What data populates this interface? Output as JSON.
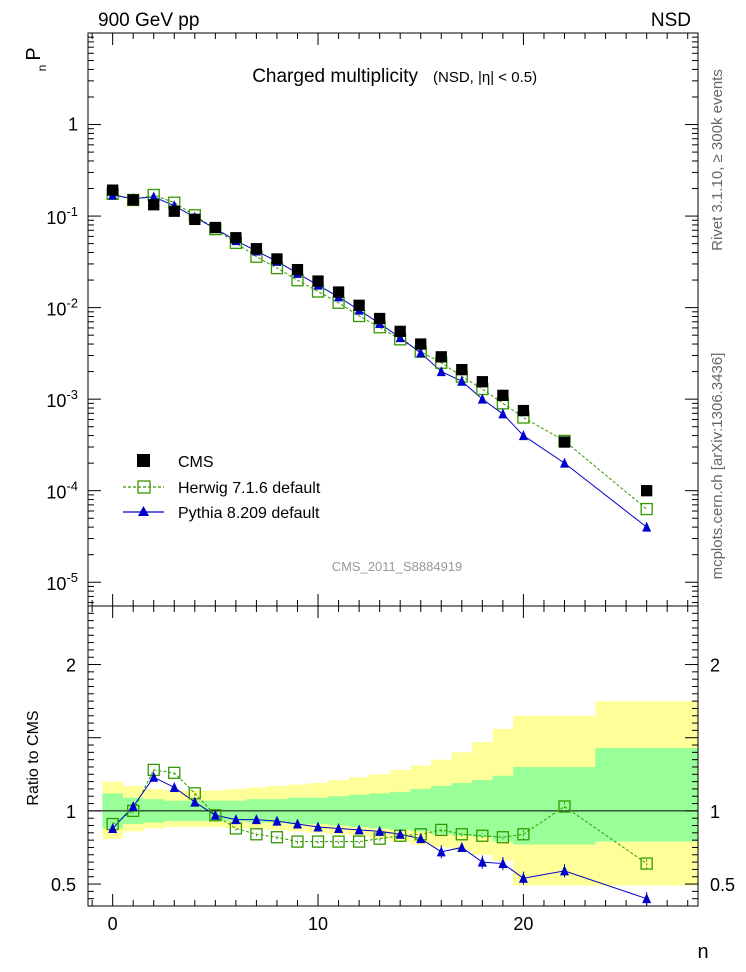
{
  "header": {
    "left": "900 GeV pp",
    "right": "NSD"
  },
  "main_title": {
    "text": "Charged multiplicity",
    "sub": "(NSD, |η| < 0.5)"
  },
  "ylabel_top": "P",
  "ylabel_top_sub": "n",
  "ylabel_bottom": "Ratio to CMS",
  "xlabel": "n",
  "watermark": "CMS_2011_S8884919",
  "side_text_1": "Rivet 3.1.10, ≥ 300k events",
  "side_text_2": "mcplots.cern.ch [arXiv:1306.3436]",
  "legend": {
    "cms": "CMS",
    "herwig": "Herwig 7.1.6 default",
    "pythia": "Pythia 8.209 default"
  },
  "colors": {
    "cms": "#000000",
    "herwig": "#339900",
    "pythia": "#0000cc",
    "band_inner": "#99ff99",
    "band_outer": "#ffff99"
  },
  "chart_data": [
    {
      "type": "scatter",
      "title": "Charged multiplicity",
      "xlabel": "n",
      "ylabel": "P_n",
      "yscale": "log",
      "xlim": [
        -1.2,
        28.5
      ],
      "ylim": [
        5.5e-06,
        10
      ],
      "y_ticklabels": [
        "10^-5",
        "10^-4",
        "10^-3",
        "10^-2",
        "10^-1",
        "1"
      ],
      "x_ticklabels": [
        "0",
        "10",
        "20"
      ],
      "x": [
        0,
        1,
        2,
        3,
        4,
        5,
        6,
        7,
        8,
        9,
        10,
        11,
        12,
        13,
        14,
        15,
        16,
        17,
        18,
        19,
        20,
        22,
        26
      ],
      "series": [
        {
          "name": "CMS",
          "values": [
            0.192,
            0.15,
            0.133,
            0.113,
            0.092,
            0.075,
            0.058,
            0.044,
            0.034,
            0.026,
            0.0195,
            0.0148,
            0.0106,
            0.0076,
            0.0055,
            0.004,
            0.0029,
            0.0021,
            0.00155,
            0.0011,
            0.00075,
            0.00034,
            0.0001
          ]
        },
        {
          "name": "Herwig 7.1.6 default",
          "values": [
            0.175,
            0.15,
            0.17,
            0.14,
            0.102,
            0.072,
            0.051,
            0.036,
            0.027,
            0.0199,
            0.015,
            0.0113,
            0.0081,
            0.0061,
            0.0045,
            0.0033,
            0.0025,
            0.00177,
            0.00129,
            0.0009,
            0.00063,
            0.00035,
            6.3e-05
          ]
        },
        {
          "name": "Pythia 8.209 default",
          "values": [
            0.17,
            0.155,
            0.162,
            0.13,
            0.097,
            0.073,
            0.054,
            0.0415,
            0.032,
            0.0237,
            0.0176,
            0.0131,
            0.0094,
            0.0067,
            0.0047,
            0.0032,
            0.002,
            0.00157,
            0.001,
            0.00069,
            0.0004,
            0.0002,
            4e-05
          ]
        }
      ]
    },
    {
      "type": "line",
      "ylabel": "Ratio to CMS",
      "xlabel": "n",
      "xlim": [
        -1.2,
        28.5
      ],
      "ylim": [
        0.35,
        2.4
      ],
      "y_ticklabels": [
        "0.5",
        "1",
        "2"
      ],
      "x_ticklabels": [
        "0",
        "10",
        "20"
      ],
      "reference_line": 1,
      "x": [
        0,
        1,
        2,
        3,
        4,
        5,
        6,
        7,
        8,
        9,
        10,
        11,
        12,
        13,
        14,
        15,
        16,
        17,
        18,
        19,
        20,
        22,
        26
      ],
      "series": [
        {
          "name": "Herwig 7.1.6 default",
          "values": [
            0.91,
            1.0,
            1.28,
            1.26,
            1.12,
            0.97,
            0.88,
            0.84,
            0.82,
            0.79,
            0.79,
            0.79,
            0.79,
            0.81,
            0.83,
            0.84,
            0.87,
            0.84,
            0.83,
            0.82,
            0.84,
            1.03,
            0.64
          ]
        },
        {
          "name": "Pythia 8.209 default",
          "values": [
            0.88,
            1.03,
            1.23,
            1.16,
            1.06,
            0.97,
            0.94,
            0.94,
            0.93,
            0.91,
            0.89,
            0.88,
            0.87,
            0.86,
            0.84,
            0.81,
            0.72,
            0.75,
            0.65,
            0.64,
            0.54,
            0.59,
            0.4
          ]
        }
      ],
      "bands": {
        "edges": [
          -0.5,
          0.5,
          1.5,
          2.5,
          3.5,
          4.5,
          5.5,
          6.5,
          7.5,
          8.5,
          9.5,
          10.5,
          11.5,
          12.5,
          13.5,
          14.5,
          15.5,
          16.5,
          17.5,
          18.5,
          19.5,
          23.5,
          28.5
        ],
        "inner": [
          [
            0.88,
            1.12
          ],
          [
            0.91,
            1.09
          ],
          [
            0.92,
            1.08
          ],
          [
            0.93,
            1.07
          ],
          [
            0.93,
            1.07
          ],
          [
            0.93,
            1.07
          ],
          [
            0.93,
            1.07
          ],
          [
            0.92,
            1.08
          ],
          [
            0.92,
            1.08
          ],
          [
            0.91,
            1.09
          ],
          [
            0.91,
            1.09
          ],
          [
            0.9,
            1.1
          ],
          [
            0.89,
            1.11
          ],
          [
            0.88,
            1.12
          ],
          [
            0.87,
            1.13
          ],
          [
            0.86,
            1.15
          ],
          [
            0.84,
            1.17
          ],
          [
            0.83,
            1.19
          ],
          [
            0.82,
            1.21
          ],
          [
            0.79,
            1.24
          ],
          [
            0.77,
            1.3
          ],
          [
            0.79,
            1.43
          ]
        ],
        "outer": [
          [
            0.81,
            1.2
          ],
          [
            0.86,
            1.17
          ],
          [
            0.88,
            1.15
          ],
          [
            0.89,
            1.14
          ],
          [
            0.89,
            1.14
          ],
          [
            0.89,
            1.14
          ],
          [
            0.88,
            1.15
          ],
          [
            0.88,
            1.16
          ],
          [
            0.87,
            1.17
          ],
          [
            0.86,
            1.18
          ],
          [
            0.85,
            1.19
          ],
          [
            0.84,
            1.21
          ],
          [
            0.83,
            1.23
          ],
          [
            0.81,
            1.25
          ],
          [
            0.79,
            1.28
          ],
          [
            0.77,
            1.31
          ],
          [
            0.75,
            1.35
          ],
          [
            0.73,
            1.4
          ],
          [
            0.7,
            1.47
          ],
          [
            0.66,
            1.56
          ],
          [
            0.49,
            1.65
          ],
          [
            0.49,
            1.75
          ]
        ]
      }
    }
  ]
}
